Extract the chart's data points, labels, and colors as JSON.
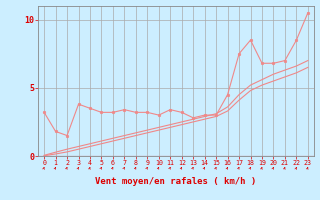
{
  "xlabel": "Vent moyen/en rafales ( km/h )",
  "bg_color": "#cceeff",
  "grid_color": "#aaaaaa",
  "line_color": "#f08888",
  "text_color": "#dd0000",
  "xlim": [
    -0.5,
    23.5
  ],
  "ylim": [
    0,
    11
  ],
  "yticks": [
    0,
    5,
    10
  ],
  "xticks": [
    0,
    1,
    2,
    3,
    4,
    5,
    6,
    7,
    8,
    9,
    10,
    11,
    12,
    13,
    14,
    15,
    16,
    17,
    18,
    19,
    20,
    21,
    22,
    23
  ],
  "line1_x": [
    0,
    1,
    2,
    3,
    4,
    5,
    6,
    7,
    8,
    9,
    10,
    11,
    12,
    13,
    14,
    15,
    16,
    17,
    18,
    19,
    20,
    21,
    22,
    23
  ],
  "line1_y": [
    3.2,
    1.8,
    1.5,
    3.8,
    3.5,
    3.2,
    3.2,
    3.4,
    3.2,
    3.2,
    3.0,
    3.4,
    3.2,
    2.8,
    3.0,
    3.0,
    4.5,
    7.5,
    8.5,
    6.8,
    6.8,
    7.0,
    8.5,
    10.5
  ],
  "line2_x": [
    0,
    1,
    2,
    3,
    4,
    5,
    6,
    7,
    8,
    9,
    10,
    11,
    12,
    13,
    14,
    15,
    16,
    17,
    18,
    19,
    20,
    21,
    22,
    23
  ],
  "line2_y": [
    0.05,
    0.28,
    0.5,
    0.7,
    0.9,
    1.1,
    1.3,
    1.5,
    1.7,
    1.9,
    2.1,
    2.3,
    2.5,
    2.7,
    2.9,
    3.1,
    3.6,
    4.5,
    5.2,
    5.6,
    6.0,
    6.3,
    6.6,
    7.0
  ],
  "line3_x": [
    0,
    1,
    2,
    3,
    4,
    5,
    6,
    7,
    8,
    9,
    10,
    11,
    12,
    13,
    14,
    15,
    16,
    17,
    18,
    19,
    20,
    21,
    22,
    23
  ],
  "line3_y": [
    0.02,
    0.15,
    0.3,
    0.5,
    0.7,
    0.9,
    1.1,
    1.3,
    1.5,
    1.7,
    1.9,
    2.1,
    2.3,
    2.5,
    2.7,
    2.9,
    3.3,
    4.1,
    4.8,
    5.2,
    5.5,
    5.8,
    6.1,
    6.5
  ],
  "arrow_angles": [
    45,
    60,
    60,
    120,
    135,
    90,
    90,
    90,
    90,
    90,
    90,
    90,
    90,
    90,
    90,
    120,
    120,
    90,
    90,
    135,
    120,
    135,
    45,
    45
  ]
}
